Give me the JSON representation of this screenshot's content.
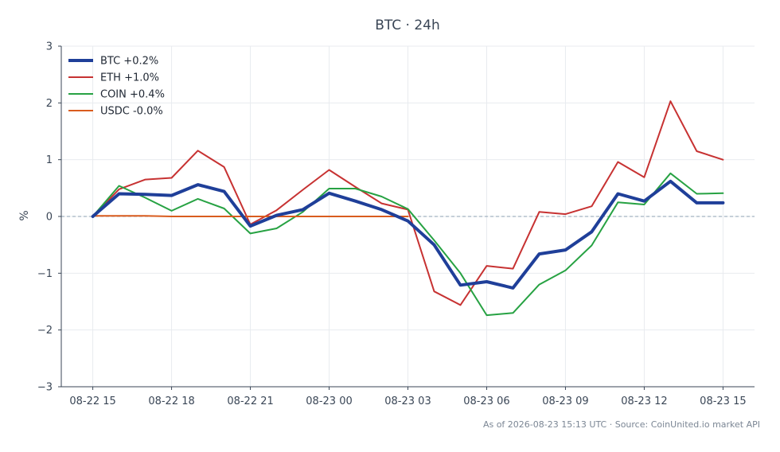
{
  "chart_data": {
    "type": "line",
    "title": "BTC · 24h",
    "xlabel": "",
    "ylabel": "%",
    "ylim": [
      -3,
      3
    ],
    "yticks": [
      3,
      2,
      1,
      0,
      -1,
      -2,
      -3
    ],
    "ytick_labels": [
      "3",
      "2",
      "1",
      "0",
      "−1",
      "−2",
      "−3"
    ],
    "x": [
      0,
      1,
      2,
      3,
      4,
      5,
      6,
      7,
      8,
      9,
      10,
      11,
      12,
      13,
      14,
      15,
      16,
      17,
      18,
      19,
      20,
      21,
      22,
      23,
      24
    ],
    "xlim": [
      -1.2,
      25.2
    ],
    "xticks": [
      0,
      3,
      6,
      9,
      12,
      15,
      18,
      21,
      24
    ],
    "xtick_labels": [
      "08-22 15",
      "08-22 18",
      "08-22 21",
      "08-23 00",
      "08-23 03",
      "08-23 06",
      "08-23 09",
      "08-23 12",
      "08-23 15"
    ],
    "grid": true,
    "zero_line": true,
    "legend_position": "top-left",
    "series": [
      {
        "name": "BTC +0.2%",
        "color": "#1f3f99",
        "width": 4,
        "values": [
          0.0,
          0.4,
          0.39,
          0.37,
          0.56,
          0.44,
          -0.17,
          0.02,
          0.12,
          0.41,
          0.27,
          0.12,
          -0.08,
          -0.5,
          -1.21,
          -1.15,
          -1.26,
          -0.66,
          -0.59,
          -0.27,
          0.4,
          0.27,
          0.62,
          0.24,
          0.24
        ]
      },
      {
        "name": "ETH +1.0%",
        "color": "#c73232",
        "width": 2,
        "values": [
          0.0,
          0.48,
          0.65,
          0.68,
          1.16,
          0.87,
          -0.14,
          0.11,
          0.47,
          0.82,
          0.52,
          0.23,
          0.12,
          -1.32,
          -1.56,
          -0.87,
          -0.92,
          0.08,
          0.04,
          0.18,
          0.96,
          0.69,
          2.03,
          1.15,
          1.0
        ]
      },
      {
        "name": "COIN +0.4%",
        "color": "#27a243",
        "width": 2,
        "values": [
          0.0,
          0.54,
          0.33,
          0.1,
          0.31,
          0.14,
          -0.3,
          -0.21,
          0.08,
          0.49,
          0.49,
          0.35,
          0.13,
          -0.42,
          -1.0,
          -1.74,
          -1.7,
          -1.2,
          -0.95,
          -0.51,
          0.25,
          0.21,
          0.76,
          0.4,
          0.41
        ]
      },
      {
        "name": "USDC -0.0%",
        "color": "#d95c1e",
        "width": 2,
        "values": [
          0.01,
          0.01,
          0.01,
          0.0,
          0.0,
          0.0,
          0.0,
          0.0,
          0.0,
          0.0,
          0.0,
          0.0,
          0.0,
          null,
          null,
          null,
          null,
          null,
          null,
          null,
          null,
          null,
          null,
          null,
          null
        ]
      }
    ],
    "footer": "As of 2026-08-23 15:13 UTC · Source: CoinUnited.io market API"
  }
}
